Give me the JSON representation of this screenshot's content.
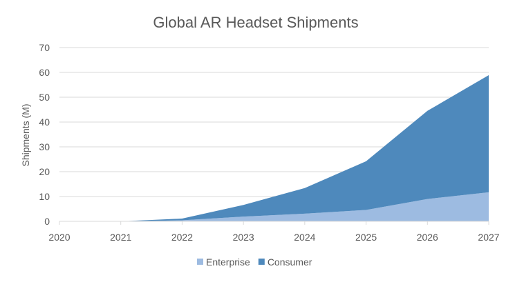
{
  "chart_data": {
    "type": "area",
    "stacked": true,
    "title": "Global AR Headset Shipments",
    "xlabel": "",
    "ylabel": "Shipments (M)",
    "x": [
      "2020",
      "2021",
      "2022",
      "2023",
      "2024",
      "2025",
      "2026",
      "2027"
    ],
    "ylim": [
      0,
      70
    ],
    "yticks": [
      "0",
      "10",
      "20",
      "30",
      "40",
      "50",
      "60",
      "70"
    ],
    "grid": true,
    "legend_position": "bottom",
    "series": [
      {
        "name": "Enterprise",
        "color": "#9DBBE1",
        "values": [
          0,
          0,
          0.4,
          1.9,
          3.1,
          4.6,
          9.0,
          11.7
        ]
      },
      {
        "name": "Consumer",
        "color": "#4E89BC",
        "values": [
          0,
          0,
          0.7,
          4.7,
          10.3,
          19.6,
          35.5,
          47.2
        ]
      }
    ]
  }
}
